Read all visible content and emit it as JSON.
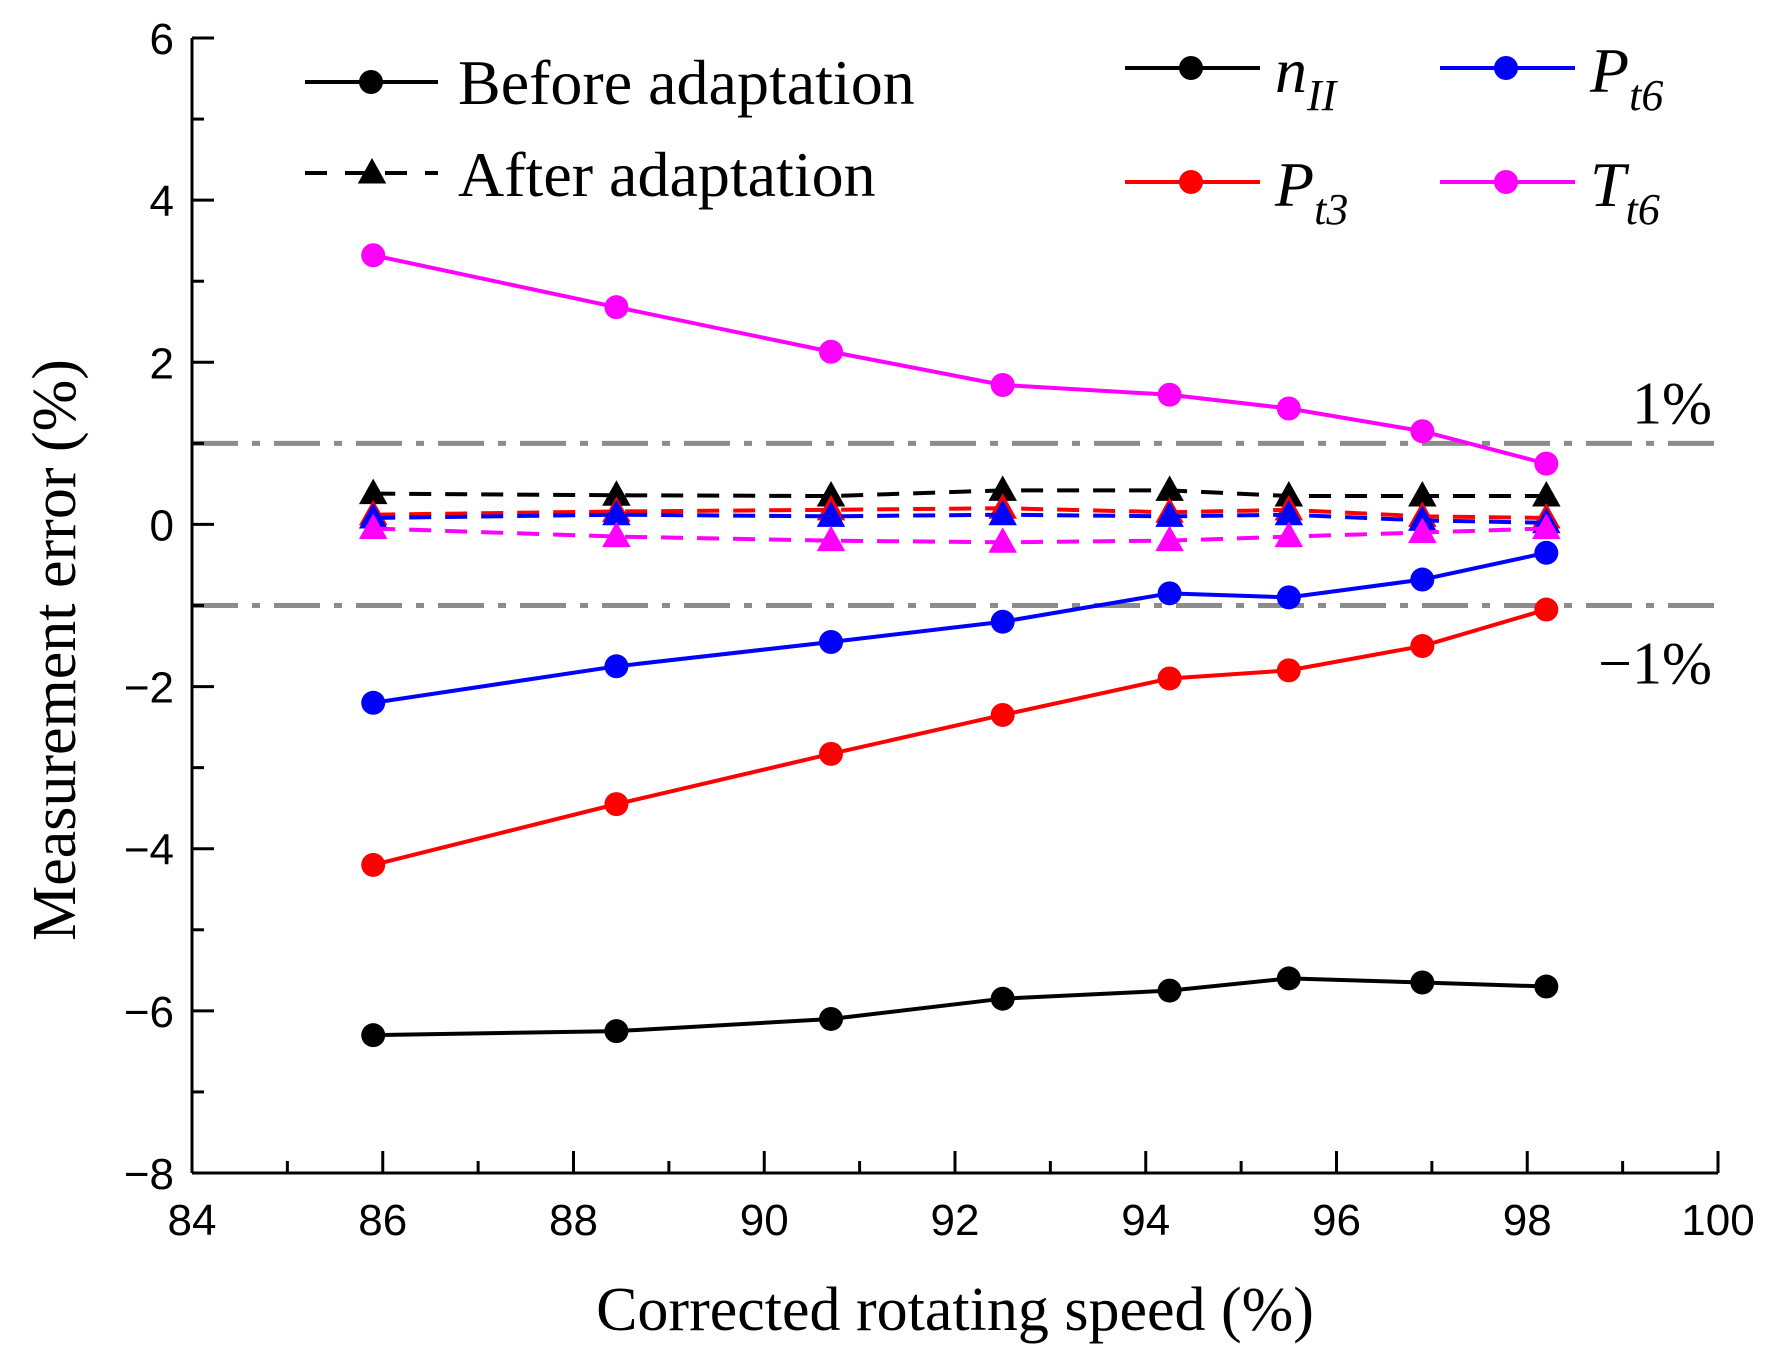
{
  "chart_data": {
    "type": "line",
    "xlabel": "Corrected rotating speed (%)",
    "ylabel": "Measurement error (%)",
    "xlim": [
      84,
      100
    ],
    "ylim": [
      -8,
      6
    ],
    "x_ticks": [
      84,
      86,
      88,
      90,
      92,
      94,
      96,
      98,
      100
    ],
    "x_tick_labels": [
      "84",
      "86",
      "88",
      "90",
      "92",
      "94",
      "96",
      "98",
      "100"
    ],
    "y_ticks": [
      -8,
      -6,
      -4,
      -2,
      0,
      2,
      4,
      6
    ],
    "y_tick_labels": [
      "−8",
      "−6",
      "−4",
      "−2",
      "0",
      "2",
      "4",
      "6"
    ],
    "x": [
      85.9,
      88.45,
      90.7,
      92.5,
      94.25,
      95.5,
      96.9,
      98.2
    ],
    "reference_lines": [
      {
        "y": 1,
        "label": "1%",
        "color": "#8c8c8c"
      },
      {
        "y": -1,
        "label": "−1%",
        "color": "#8c8c8c"
      }
    ],
    "series": [
      {
        "name": "n_II",
        "variable": "n",
        "subscript": "II",
        "stage": "Before adaptation",
        "color": "#000000",
        "values": [
          -6.3,
          -6.25,
          -6.1,
          -5.85,
          -5.75,
          -5.6,
          -5.65,
          -5.7
        ]
      },
      {
        "name": "P_t3",
        "variable": "P",
        "subscript": "t3",
        "stage": "Before adaptation",
        "color": "#ff0000",
        "values": [
          -4.2,
          -3.45,
          -2.83,
          -2.35,
          -1.9,
          -1.8,
          -1.5,
          -1.05
        ]
      },
      {
        "name": "P_t6",
        "variable": "P",
        "subscript": "t6",
        "stage": "Before adaptation",
        "color": "#0000ff",
        "values": [
          -2.2,
          -1.75,
          -1.45,
          -1.2,
          -0.85,
          -0.9,
          -0.68,
          -0.35
        ]
      },
      {
        "name": "T_t6",
        "variable": "T",
        "subscript": "t6",
        "stage": "Before adaptation",
        "color": "#ff00ff",
        "values": [
          3.32,
          2.68,
          2.13,
          1.72,
          1.6,
          1.43,
          1.15,
          0.75
        ]
      },
      {
        "name": "n_II",
        "stage": "After adaptation",
        "color": "#000000",
        "values": [
          0.38,
          0.36,
          0.35,
          0.42,
          0.42,
          0.35,
          0.35,
          0.35
        ]
      },
      {
        "name": "P_t3",
        "stage": "After adaptation",
        "color": "#ff0000",
        "values": [
          0.12,
          0.16,
          0.18,
          0.2,
          0.15,
          0.18,
          0.1,
          0.08
        ]
      },
      {
        "name": "P_t6",
        "stage": "After adaptation",
        "color": "#0000ff",
        "values": [
          0.08,
          0.12,
          0.1,
          0.12,
          0.1,
          0.12,
          0.05,
          0.02
        ]
      },
      {
        "name": "T_t6",
        "stage": "After adaptation",
        "color": "#ff00ff",
        "values": [
          -0.05,
          -0.15,
          -0.2,
          -0.22,
          -0.2,
          -0.15,
          -0.1,
          -0.05
        ]
      }
    ],
    "legend": {
      "style_entries": [
        {
          "label": "Before adaptation",
          "line": "solid",
          "marker": "circle"
        },
        {
          "label": "After adaptation",
          "line": "dashed",
          "marker": "triangle"
        }
      ],
      "series_entries": [
        {
          "variable": "n",
          "subscript": "II",
          "color": "#000000"
        },
        {
          "variable": "P",
          "subscript": "t6",
          "color": "#0000ff"
        },
        {
          "variable": "P",
          "subscript": "t3",
          "color": "#ff0000"
        },
        {
          "variable": "T",
          "subscript": "t6",
          "color": "#ff00ff"
        }
      ],
      "placement": "top"
    },
    "grid": false
  }
}
